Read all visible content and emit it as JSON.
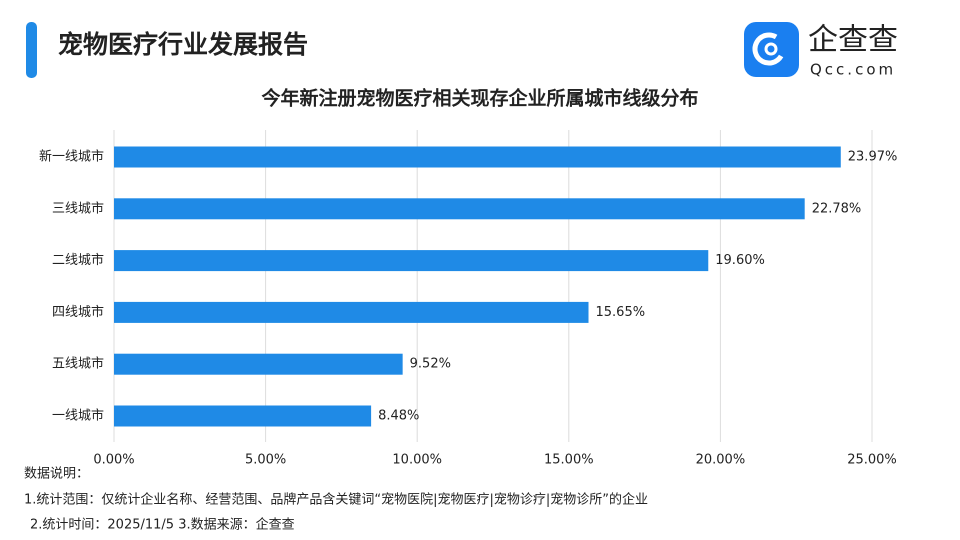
{
  "header": {
    "title": "宠物医疗行业发展报告"
  },
  "logo": {
    "name": "企查查",
    "domain": "Qcc.com"
  },
  "chart_data": {
    "type": "hbar",
    "title": "今年新注册宠物医疗相关现存企业所属城市线级分布",
    "categories": [
      "新一线城市",
      "三线城市",
      "二线城市",
      "四线城市",
      "五线城市",
      "一线城市"
    ],
    "values": [
      23.97,
      22.78,
      19.6,
      15.65,
      9.52,
      8.48
    ],
    "value_labels": [
      "23.97%",
      "22.78%",
      "19.60%",
      "15.65%",
      "9.52%",
      "8.48%"
    ],
    "color": "#1f8ae6",
    "xlim": [
      0,
      25
    ],
    "xticks": [
      {
        "value": 0,
        "label": "0.00%"
      },
      {
        "value": 5,
        "label": "5.00%"
      },
      {
        "value": 10,
        "label": "10.00%"
      },
      {
        "value": 15,
        "label": "15.00%"
      },
      {
        "value": 20,
        "label": "20.00%"
      },
      {
        "value": 25,
        "label": "25.00%"
      }
    ],
    "grid": true
  },
  "notes": {
    "heading": "数据说明：",
    "lines": [
      "1.统计范围：仅统计企业名称、经营范围、品牌产品含关键词“宠物医院|宠物医疗|宠物诊疗|宠物诊所”的企业",
      "2.统计时间：2025/11/5  3.数据来源：企查查"
    ]
  }
}
